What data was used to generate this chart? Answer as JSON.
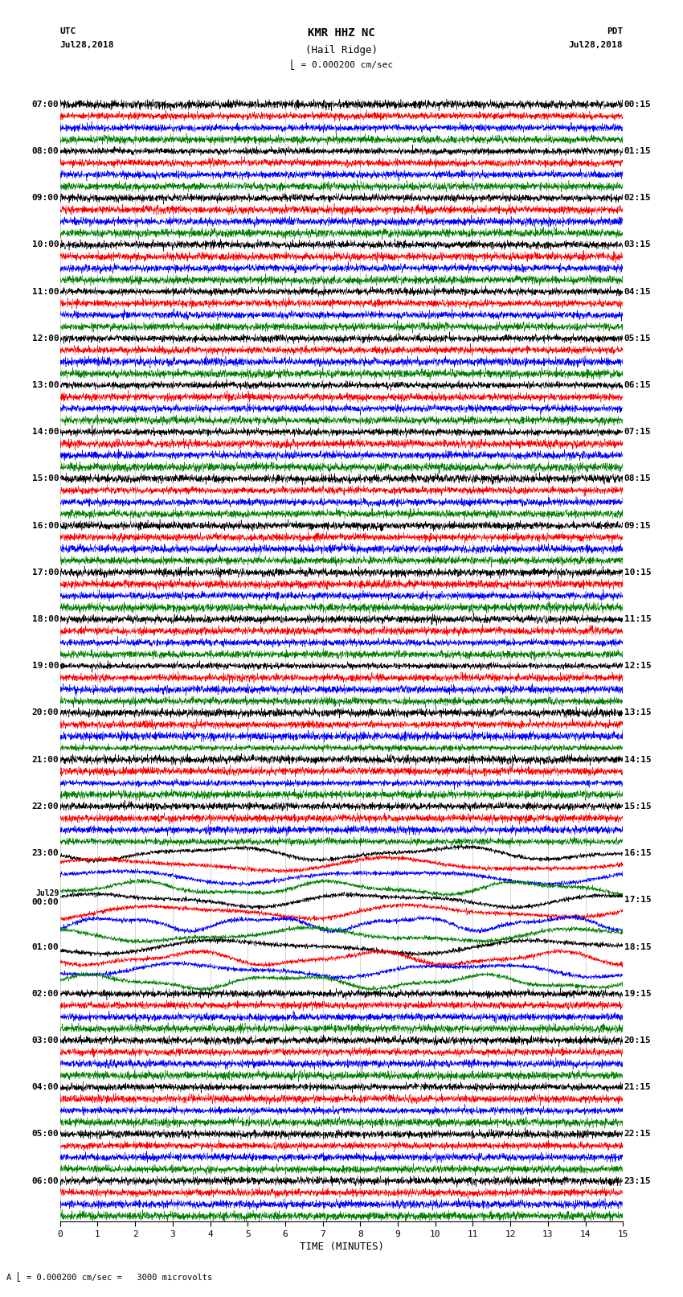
{
  "title_line1": "KMR HHZ NC",
  "title_line2": "(Hail Ridge)",
  "scale_text": "= 0.000200 cm/sec",
  "bottom_scale_text": "= 0.000200 cm/sec =   3000 microvolts",
  "xlabel": "TIME (MINUTES)",
  "xticks": [
    0,
    1,
    2,
    3,
    4,
    5,
    6,
    7,
    8,
    9,
    10,
    11,
    12,
    13,
    14,
    15
  ],
  "colors": [
    "black",
    "red",
    "blue",
    "green"
  ],
  "n_hour_blocks": 24,
  "traces_per_block": 4,
  "left_times": [
    "07:00",
    "08:00",
    "09:00",
    "10:00",
    "11:00",
    "12:00",
    "13:00",
    "14:00",
    "15:00",
    "16:00",
    "17:00",
    "18:00",
    "19:00",
    "20:00",
    "21:00",
    "22:00",
    "23:00",
    "00:00",
    "01:00",
    "02:00",
    "03:00",
    "04:00",
    "05:00",
    "06:00"
  ],
  "right_times": [
    "00:15",
    "01:15",
    "02:15",
    "03:15",
    "04:15",
    "05:15",
    "06:15",
    "07:15",
    "08:15",
    "09:15",
    "10:15",
    "11:15",
    "12:15",
    "13:15",
    "14:15",
    "15:15",
    "16:15",
    "17:15",
    "18:15",
    "19:15",
    "20:15",
    "21:15",
    "22:15",
    "23:15"
  ],
  "jul29_block": 17,
  "fig_width": 8.5,
  "fig_height": 16.13,
  "bg_color": "white",
  "seed": 12345,
  "n_points": 3000,
  "large_amp_blocks": [
    16,
    17,
    18
  ],
  "medium_amp_blocks": [
    9,
    12,
    13
  ]
}
